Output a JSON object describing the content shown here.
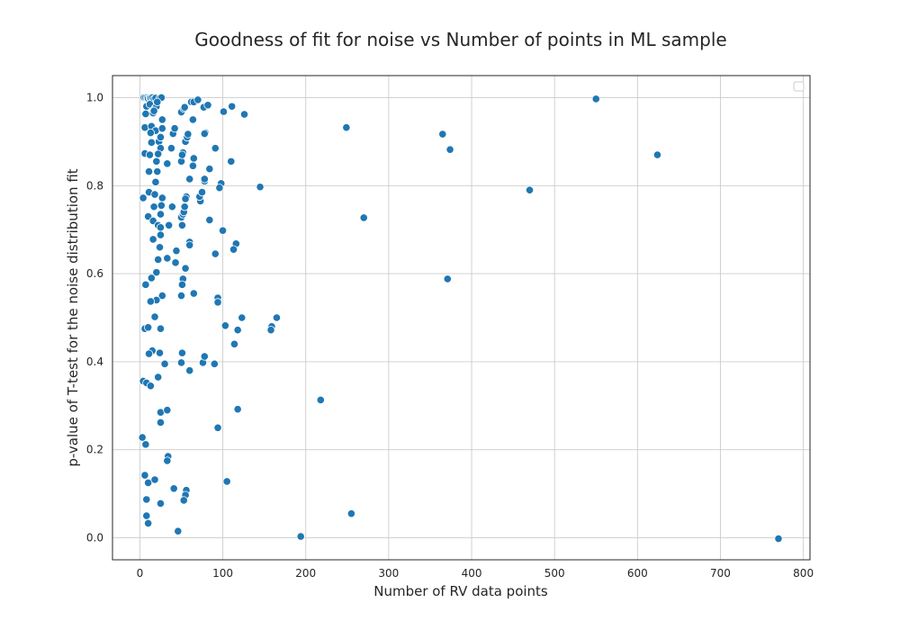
{
  "chart_data": {
    "type": "scatter",
    "title": "Goodness of fit for noise vs Number of points in ML sample",
    "xlabel": "Number of RV data points",
    "ylabel": "p-value of T-test for the noise distribution fit",
    "xlim": [
      -33,
      808
    ],
    "ylim": [
      -0.05,
      1.05
    ],
    "xticks": [
      "0",
      "100",
      "200",
      "300",
      "400",
      "500",
      "600",
      "700",
      "800"
    ],
    "yticks": [
      "0.0",
      "0.2",
      "0.4",
      "0.6",
      "0.8",
      "1.0"
    ],
    "grid": true,
    "legend": {
      "location": "top-right",
      "entries": []
    },
    "series": [
      {
        "color": "#1f77b4",
        "points": [
          [
            5,
            1.0
          ],
          [
            7,
            1.0
          ],
          [
            9,
            1.0
          ],
          [
            10,
            0.998
          ],
          [
            12,
            1.0
          ],
          [
            13,
            0.999
          ],
          [
            15,
            1.0
          ],
          [
            17,
            0.997
          ],
          [
            19,
            0.999
          ],
          [
            24,
            0.999
          ],
          [
            26,
            1.0
          ],
          [
            8,
            0.98
          ],
          [
            12,
            0.985
          ],
          [
            18,
            0.975
          ],
          [
            20,
            0.98
          ],
          [
            16,
            0.965
          ],
          [
            21,
            0.99
          ],
          [
            7,
            0.963
          ],
          [
            17,
            0.97
          ],
          [
            27,
            0.95
          ],
          [
            6,
            0.932
          ],
          [
            14,
            0.935
          ],
          [
            19,
            0.925
          ],
          [
            27,
            0.93
          ],
          [
            13,
            0.92
          ],
          [
            23,
            0.9
          ],
          [
            25,
            0.91
          ],
          [
            14,
            0.898
          ],
          [
            25,
            0.885
          ],
          [
            6,
            0.873
          ],
          [
            12,
            0.87
          ],
          [
            22,
            0.872
          ],
          [
            20,
            0.855
          ],
          [
            33,
            0.85
          ],
          [
            11,
            0.832
          ],
          [
            21,
            0.832
          ],
          [
            19,
            0.808
          ],
          [
            11,
            0.785
          ],
          [
            18,
            0.78
          ],
          [
            27,
            0.772
          ],
          [
            4,
            0.772
          ],
          [
            17,
            0.752
          ],
          [
            26,
            0.755
          ],
          [
            10,
            0.73
          ],
          [
            25,
            0.735
          ],
          [
            16,
            0.72
          ],
          [
            22,
            0.71
          ],
          [
            25,
            0.705
          ],
          [
            35,
            0.71
          ],
          [
            25,
            0.688
          ],
          [
            16,
            0.678
          ],
          [
            24,
            0.66
          ],
          [
            22,
            0.632
          ],
          [
            33,
            0.635
          ],
          [
            20,
            0.603
          ],
          [
            14,
            0.59
          ],
          [
            7,
            0.575
          ],
          [
            27,
            0.55
          ],
          [
            20,
            0.54
          ],
          [
            13,
            0.537
          ],
          [
            18,
            0.502
          ],
          [
            6,
            0.475
          ],
          [
            10,
            0.478
          ],
          [
            25,
            0.475
          ],
          [
            15,
            0.425
          ],
          [
            11,
            0.418
          ],
          [
            24,
            0.42
          ],
          [
            30,
            0.395
          ],
          [
            22,
            0.365
          ],
          [
            4,
            0.356
          ],
          [
            8,
            0.352
          ],
          [
            13,
            0.345
          ],
          [
            25,
            0.285
          ],
          [
            33,
            0.29
          ],
          [
            25,
            0.262
          ],
          [
            3,
            0.228
          ],
          [
            7,
            0.212
          ],
          [
            34,
            0.185
          ],
          [
            33,
            0.175
          ],
          [
            6,
            0.142
          ],
          [
            10,
            0.125
          ],
          [
            18,
            0.132
          ],
          [
            8,
            0.087
          ],
          [
            25,
            0.078
          ],
          [
            8,
            0.05
          ],
          [
            10,
            0.033
          ],
          [
            50,
            0.967
          ],
          [
            53,
            0.975
          ],
          [
            54,
            0.978
          ],
          [
            62,
            0.99
          ],
          [
            65,
            0.99
          ],
          [
            70,
            0.995
          ],
          [
            77,
            0.978
          ],
          [
            82,
            0.983
          ],
          [
            64,
            0.95
          ],
          [
            40,
            0.918
          ],
          [
            42,
            0.93
          ],
          [
            55,
            0.9
          ],
          [
            57,
            0.91
          ],
          [
            58,
            0.917
          ],
          [
            38,
            0.885
          ],
          [
            50,
            0.855
          ],
          [
            52,
            0.875
          ],
          [
            51,
            0.87
          ],
          [
            65,
            0.862
          ],
          [
            64,
            0.845
          ],
          [
            60,
            0.815
          ],
          [
            50,
            0.728
          ],
          [
            52,
            0.735
          ],
          [
            53,
            0.74
          ],
          [
            54,
            0.752
          ],
          [
            56,
            0.775
          ],
          [
            55,
            0.77
          ],
          [
            51,
            0.71
          ],
          [
            39,
            0.752
          ],
          [
            44,
            0.652
          ],
          [
            60,
            0.672
          ],
          [
            60,
            0.665
          ],
          [
            43,
            0.625
          ],
          [
            55,
            0.612
          ],
          [
            52,
            0.588
          ],
          [
            51,
            0.575
          ],
          [
            50,
            0.55
          ],
          [
            65,
            0.555
          ],
          [
            51,
            0.42
          ],
          [
            50,
            0.398
          ],
          [
            60,
            0.38
          ],
          [
            41,
            0.112
          ],
          [
            56,
            0.108
          ],
          [
            55,
            0.097
          ],
          [
            53,
            0.085
          ],
          [
            46,
            0.015
          ],
          [
            79,
            0.92
          ],
          [
            78,
            0.918
          ],
          [
            73,
            0.765
          ],
          [
            72,
            0.775
          ],
          [
            75,
            0.785
          ],
          [
            78,
            0.81
          ],
          [
            78,
            0.815
          ],
          [
            84,
            0.838
          ],
          [
            84,
            0.722
          ],
          [
            91,
            0.885
          ],
          [
            98,
            0.805
          ],
          [
            96,
            0.795
          ],
          [
            100,
            0.698
          ],
          [
            101,
            0.968
          ],
          [
            111,
            0.98
          ],
          [
            110,
            0.855
          ],
          [
            126,
            0.962
          ],
          [
            145,
            0.797
          ],
          [
            116,
            0.668
          ],
          [
            113,
            0.655
          ],
          [
            91,
            0.645
          ],
          [
            94,
            0.545
          ],
          [
            94,
            0.535
          ],
          [
            103,
            0.482
          ],
          [
            118,
            0.472
          ],
          [
            123,
            0.5
          ],
          [
            114,
            0.44
          ],
          [
            76,
            0.398
          ],
          [
            78,
            0.412
          ],
          [
            90,
            0.395
          ],
          [
            118,
            0.292
          ],
          [
            94,
            0.25
          ],
          [
            105,
            0.128
          ],
          [
            159,
            0.48
          ],
          [
            158,
            0.472
          ],
          [
            165,
            0.5
          ],
          [
            218,
            0.313
          ],
          [
            194,
            0.003
          ],
          [
            249,
            0.932
          ],
          [
            270,
            0.727
          ],
          [
            255,
            0.055
          ],
          [
            365,
            0.917
          ],
          [
            374,
            0.882
          ],
          [
            371,
            0.588
          ],
          [
            470,
            0.79
          ],
          [
            550,
            0.997
          ],
          [
            624,
            0.87
          ],
          [
            770,
            -0.002
          ]
        ]
      }
    ]
  }
}
